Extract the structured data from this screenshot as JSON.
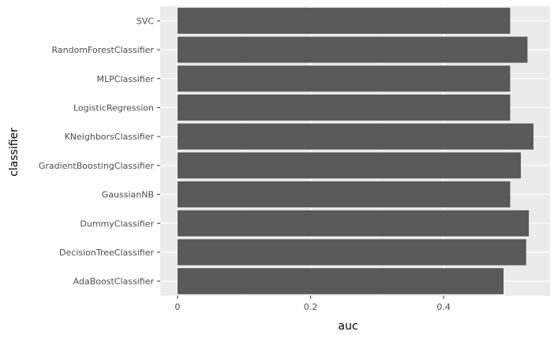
{
  "chart_data": {
    "type": "bar",
    "orientation": "horizontal",
    "xlabel": "auc",
    "ylabel": "classifier",
    "categories": [
      "AdaBoostClassifier",
      "DecisionTreeClassifier",
      "DummyClassifier",
      "GaussianNB",
      "GradientBoostingClassifier",
      "KNeighborsClassifier",
      "LogisticRegression",
      "MLPClassifier",
      "RandomForestClassifier",
      "SVC"
    ],
    "values": [
      0.49,
      0.524,
      0.528,
      0.5,
      0.516,
      0.535,
      0.5,
      0.5,
      0.526,
      0.5
    ],
    "xlim": [
      -0.026,
      0.56
    ],
    "xticks": [
      0,
      0.2,
      0.4
    ],
    "xtick_labels": [
      "0",
      "0.2",
      "0.4"
    ],
    "grid": true,
    "colors": {
      "panel_background": "#ebebeb",
      "grid_major": "#ffffff",
      "grid_minor": "#f5f5f5",
      "bar_fill": "#595959",
      "tick_label": "#4d4d4d",
      "tick_mark": "#333333",
      "axis_title": "#000000"
    }
  }
}
